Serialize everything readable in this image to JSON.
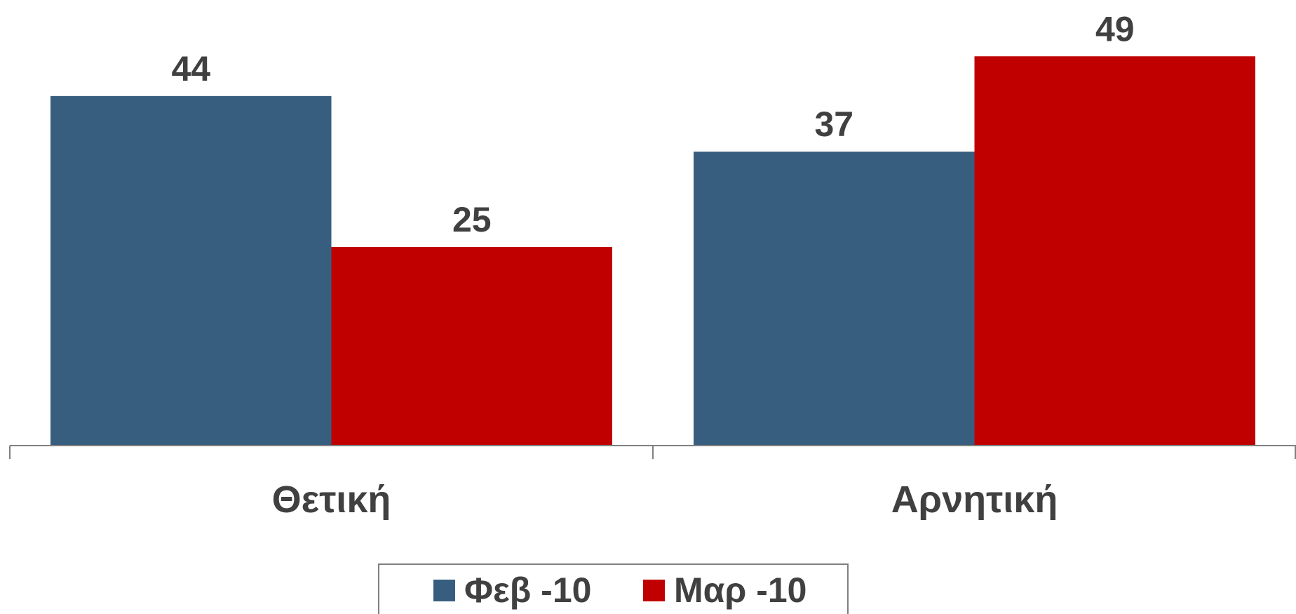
{
  "chart_data": {
    "type": "bar",
    "categories": [
      "Θετική",
      "Αρνητική"
    ],
    "series": [
      {
        "name": "Φεβ -10",
        "color": "#375e7f",
        "values": [
          44,
          37
        ]
      },
      {
        "name": "Μαρ -10",
        "color": "#c00000",
        "values": [
          25,
          49
        ]
      }
    ],
    "ylim": [
      0,
      56
    ],
    "legend": "bottom"
  }
}
